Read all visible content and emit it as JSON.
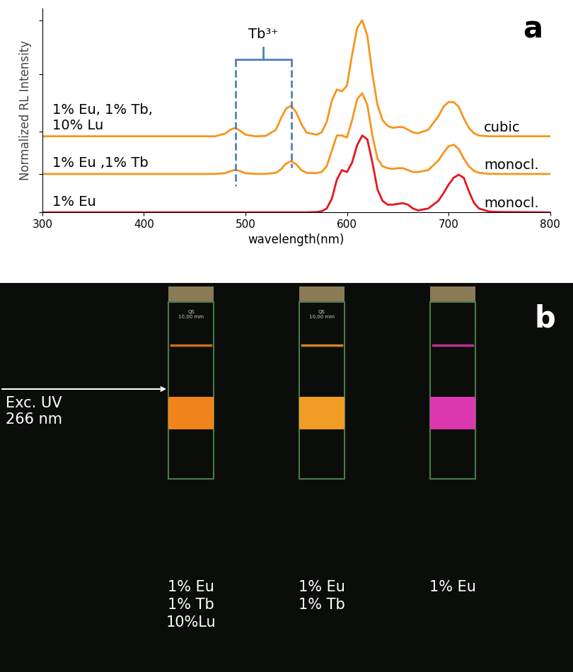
{
  "chart_data": {
    "type": "line",
    "label": "a",
    "xlabel": "wavelength(nm)",
    "ylabel": "Normalized RL Intensity",
    "xlim": [
      300,
      800
    ],
    "xticks": [
      300,
      400,
      500,
      600,
      700,
      800
    ],
    "ylim": [
      0,
      5.3
    ],
    "yticks": [
      0,
      1,
      2.1,
      3.6,
      5
    ],
    "tick_labels": "x",
    "x": [
      300,
      400,
      450,
      470,
      480,
      485,
      490,
      495,
      500,
      510,
      520,
      530,
      535,
      540,
      545,
      550,
      555,
      560,
      570,
      575,
      580,
      585,
      590,
      595,
      600,
      605,
      610,
      615,
      620,
      625,
      630,
      635,
      640,
      645,
      650,
      655,
      660,
      665,
      670,
      680,
      690,
      695,
      700,
      705,
      710,
      715,
      720,
      725,
      730,
      740,
      750,
      800
    ],
    "series": [
      {
        "name": "1% Eu, 1% Tb,\n10% Lu",
        "phase": "cubic",
        "color": "#f7941d",
        "values": [
          1.98,
          1.98,
          1.98,
          1.98,
          2.05,
          2.15,
          2.2,
          2.12,
          2.02,
          1.98,
          1.99,
          2.15,
          2.45,
          2.7,
          2.78,
          2.6,
          2.3,
          2.08,
          2.02,
          2.08,
          2.35,
          2.9,
          3.2,
          3.15,
          3.3,
          4.1,
          4.8,
          5.0,
          4.6,
          3.6,
          2.8,
          2.4,
          2.25,
          2.2,
          2.22,
          2.22,
          2.15,
          2.08,
          2.06,
          2.15,
          2.5,
          2.75,
          2.87,
          2.87,
          2.75,
          2.45,
          2.2,
          2.06,
          2.0,
          1.98,
          1.98,
          1.98
        ]
      },
      {
        "name": "1% Eu ,1% Tb",
        "phase": "monocl.",
        "color": "#f7941d",
        "values": [
          1.0,
          1.0,
          1.0,
          1.0,
          1.02,
          1.07,
          1.11,
          1.07,
          1.02,
          1.0,
          1.0,
          1.03,
          1.12,
          1.27,
          1.33,
          1.25,
          1.1,
          1.03,
          1.02,
          1.05,
          1.2,
          1.6,
          2.0,
          2.0,
          1.95,
          2.4,
          2.95,
          3.1,
          2.8,
          2.0,
          1.4,
          1.2,
          1.15,
          1.13,
          1.15,
          1.15,
          1.1,
          1.05,
          1.05,
          1.1,
          1.35,
          1.55,
          1.72,
          1.76,
          1.65,
          1.4,
          1.2,
          1.08,
          1.03,
          1.0,
          1.0,
          1.0
        ]
      },
      {
        "name": "1% Eu",
        "phase": "monocl.",
        "color": "#e8141c",
        "values": [
          0,
          0,
          0,
          0,
          0,
          0,
          0,
          0,
          0,
          0,
          0,
          0,
          0,
          0,
          0,
          0,
          0,
          0,
          0.01,
          0.03,
          0.1,
          0.35,
          0.85,
          1.1,
          1.05,
          1.3,
          1.75,
          2.0,
          1.9,
          1.3,
          0.6,
          0.3,
          0.2,
          0.2,
          0.22,
          0.24,
          0.2,
          0.1,
          0.05,
          0.1,
          0.3,
          0.5,
          0.72,
          0.9,
          0.98,
          0.9,
          0.55,
          0.25,
          0.1,
          0.02,
          0.01,
          0
        ]
      }
    ],
    "bracket": {
      "text": "Tb³⁺",
      "x": [
        490,
        545
      ],
      "color": "#4f81bd"
    }
  },
  "panel_b": {
    "label": "b",
    "excitation": "Exc. UV\n266 nm",
    "samples": [
      {
        "name": "1% Eu\n1% Tb\n10%Lu",
        "color": "#ff8a1e",
        "cuvette_text": "QS\n10,00 mm"
      },
      {
        "name": "1% Eu\n1% Tb",
        "color": "#ffa526",
        "cuvette_text": "QS\n10,00 mm"
      },
      {
        "name": "1% Eu",
        "color": "#e83ab8"
      }
    ]
  }
}
